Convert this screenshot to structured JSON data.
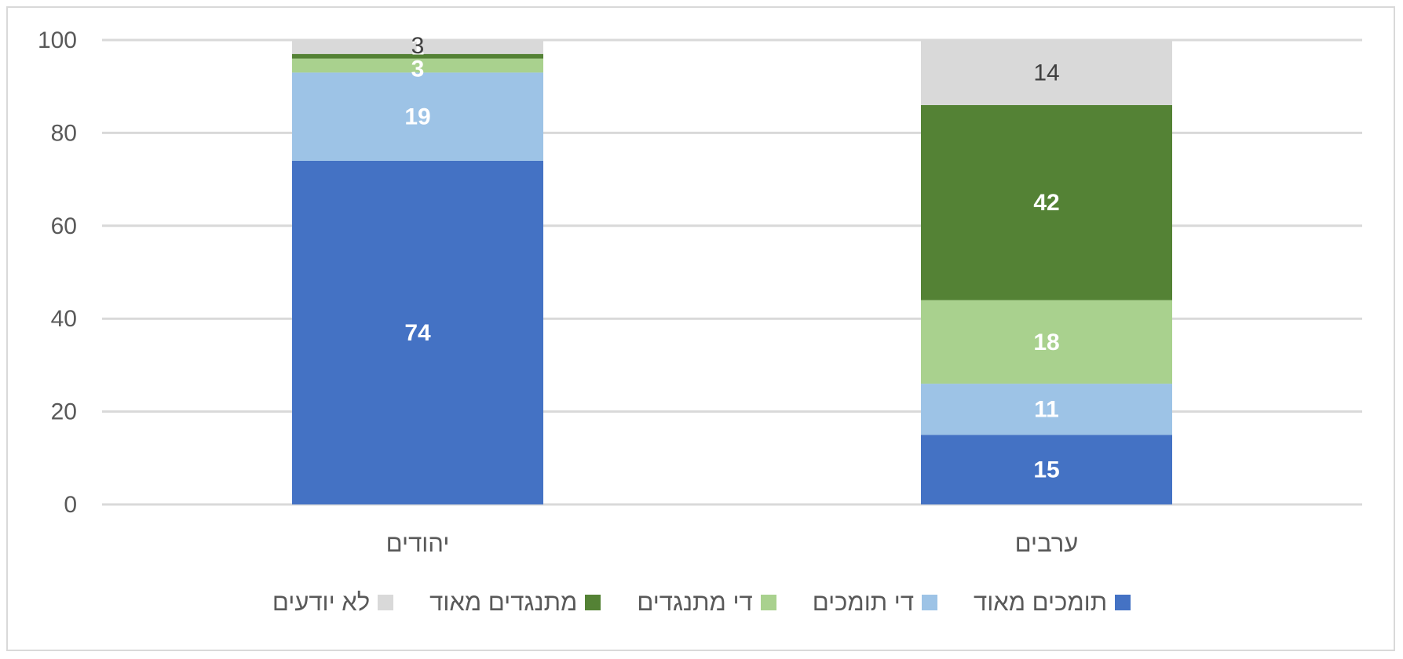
{
  "chart_data": {
    "type": "bar",
    "stacked": true,
    "categories": [
      "יהודים",
      "ערבים"
    ],
    "series": [
      {
        "name": "תומכים מאוד",
        "color": "#4472C4",
        "values": [
          74,
          15
        ],
        "label_color": "#FFFFFF"
      },
      {
        "name": "די תומכים",
        "color": "#9DC3E6",
        "values": [
          19,
          11
        ],
        "label_color": "#FFFFFF"
      },
      {
        "name": "די מתנגדים",
        "color": "#A9D18E",
        "values": [
          3,
          18
        ],
        "label_color": "#FFFFFF"
      },
      {
        "name": "מתנגדים מאוד",
        "color": "#548235",
        "values": [
          1,
          42
        ],
        "label_color": "#FFFFFF"
      },
      {
        "name": "לא יודעים",
        "color": "#D9D9D9",
        "values": [
          3,
          14
        ],
        "label_color": "#404040"
      }
    ],
    "ylim": [
      0,
      100
    ],
    "yticks": [
      0,
      20,
      40,
      60,
      80,
      100
    ],
    "grid": true,
    "legend_position": "bottom",
    "title": "",
    "xlabel": "",
    "ylabel": ""
  }
}
